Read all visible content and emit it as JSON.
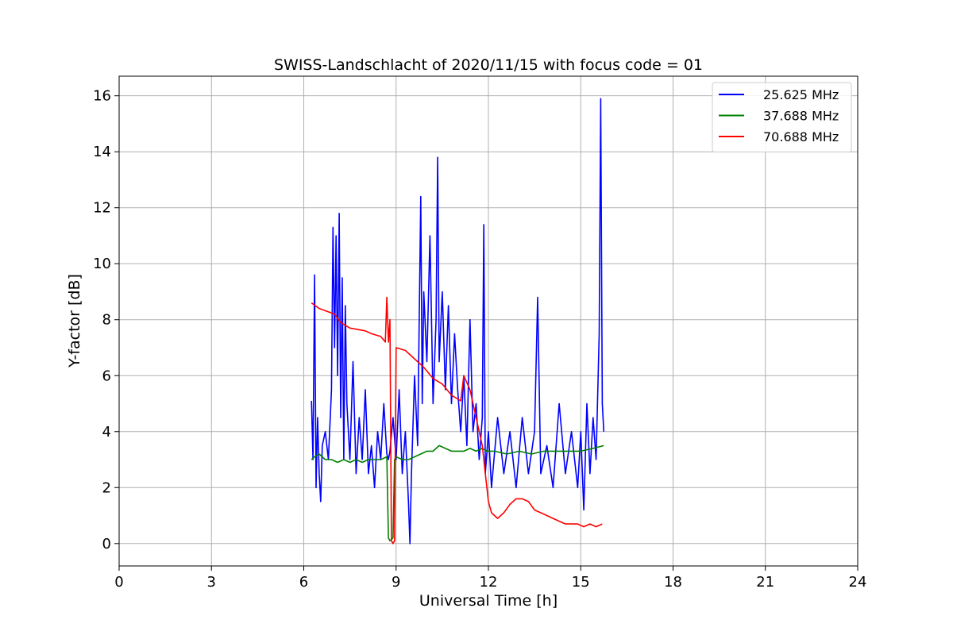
{
  "chart_data": {
    "type": "line",
    "title": "SWISS-Landschlacht of 2020/11/15 with focus code = 01",
    "xlabel": "Universal Time [h]",
    "ylabel": "Y-factor [dB]",
    "xlim": [
      0,
      24
    ],
    "ylim": [
      -0.8,
      16.7
    ],
    "xticks": [
      0,
      3,
      6,
      9,
      12,
      15,
      18,
      21,
      24
    ],
    "yticks": [
      0,
      2,
      4,
      6,
      8,
      10,
      12,
      14,
      16
    ],
    "grid": true,
    "legend_position": "top-right",
    "series": [
      {
        "name": "25.625 MHz",
        "color": "#0000ff",
        "x": [
          6.25,
          6.3,
          6.35,
          6.4,
          6.45,
          6.5,
          6.55,
          6.6,
          6.7,
          6.8,
          6.9,
          6.95,
          7.0,
          7.05,
          7.1,
          7.15,
          7.2,
          7.25,
          7.3,
          7.35,
          7.4,
          7.5,
          7.6,
          7.7,
          7.8,
          7.9,
          8.0,
          8.1,
          8.2,
          8.3,
          8.4,
          8.5,
          8.6,
          8.7,
          8.75,
          8.8,
          8.9,
          9.0,
          9.1,
          9.2,
          9.3,
          9.4,
          9.45,
          9.5,
          9.6,
          9.7,
          9.8,
          9.85,
          9.9,
          10.0,
          10.1,
          10.2,
          10.3,
          10.35,
          10.4,
          10.5,
          10.6,
          10.7,
          10.8,
          10.9,
          11.0,
          11.1,
          11.2,
          11.3,
          11.4,
          11.5,
          11.6,
          11.7,
          11.8,
          11.85,
          11.9,
          12.0,
          12.1,
          12.3,
          12.5,
          12.7,
          12.9,
          13.1,
          13.3,
          13.5,
          13.6,
          13.7,
          13.9,
          14.1,
          14.3,
          14.5,
          14.7,
          14.9,
          15.0,
          15.1,
          15.2,
          15.3,
          15.4,
          15.5,
          15.6,
          15.65,
          15.7,
          15.75
        ],
        "y": [
          5.1,
          3.0,
          9.6,
          2.0,
          4.5,
          2.5,
          1.5,
          3.5,
          4.0,
          3.0,
          5.5,
          11.3,
          7.0,
          11.0,
          6.0,
          11.8,
          4.5,
          9.5,
          3.0,
          8.5,
          5.0,
          3.0,
          6.5,
          2.5,
          4.5,
          3.0,
          5.5,
          2.5,
          3.5,
          2.0,
          4.0,
          3.0,
          5.0,
          3.2,
          3.0,
          3.3,
          4.5,
          3.0,
          5.5,
          2.5,
          4.0,
          1.5,
          0.0,
          2.5,
          6.0,
          3.5,
          12.4,
          5.0,
          9.0,
          6.5,
          11.0,
          5.0,
          8.0,
          13.8,
          6.5,
          9.0,
          5.5,
          8.5,
          5.0,
          7.5,
          5.5,
          4.0,
          6.0,
          3.5,
          8.0,
          4.0,
          5.0,
          3.0,
          4.5,
          11.4,
          2.5,
          4.0,
          2.0,
          4.5,
          2.5,
          4.0,
          2.0,
          4.5,
          2.5,
          4.0,
          8.8,
          2.5,
          3.5,
          2.0,
          5.0,
          2.5,
          4.0,
          2.0,
          4.0,
          1.2,
          5.0,
          2.5,
          4.5,
          3.0,
          7.5,
          15.9,
          5.0,
          4.0
        ]
      },
      {
        "name": "37.688 MHz",
        "color": "#008000",
        "x": [
          6.25,
          6.35,
          6.5,
          6.7,
          6.9,
          7.1,
          7.3,
          7.5,
          7.7,
          7.9,
          8.1,
          8.3,
          8.5,
          8.7,
          8.75,
          8.8,
          8.9,
          8.95,
          9.0,
          9.2,
          9.4,
          9.6,
          9.8,
          10.0,
          10.2,
          10.4,
          10.6,
          10.8,
          11.0,
          11.2,
          11.4,
          11.6,
          11.8,
          11.95,
          12.2,
          12.6,
          13.0,
          13.4,
          13.8,
          14.2,
          14.6,
          15.0,
          15.4,
          15.75
        ],
        "y": [
          3.0,
          3.1,
          3.2,
          3.0,
          3.0,
          2.9,
          3.0,
          2.9,
          3.0,
          2.9,
          3.0,
          3.0,
          3.0,
          3.1,
          0.2,
          0.1,
          0.2,
          3.0,
          3.1,
          3.0,
          3.0,
          3.1,
          3.2,
          3.3,
          3.3,
          3.5,
          3.4,
          3.3,
          3.3,
          3.3,
          3.4,
          3.3,
          3.4,
          3.3,
          3.3,
          3.2,
          3.3,
          3.2,
          3.3,
          3.3,
          3.3,
          3.3,
          3.4,
          3.5
        ]
      },
      {
        "name": "70.688 MHz",
        "color": "#ff0000",
        "x": [
          6.25,
          6.5,
          7.0,
          7.2,
          7.5,
          8.0,
          8.2,
          8.5,
          8.65,
          8.7,
          8.75,
          8.8,
          8.85,
          8.9,
          8.95,
          9.0,
          9.3,
          9.6,
          9.9,
          10.2,
          10.5,
          10.8,
          11.1,
          11.2,
          11.4,
          11.6,
          11.8,
          11.9,
          12.0,
          12.1,
          12.3,
          12.5,
          12.7,
          12.9,
          13.1,
          13.3,
          13.5,
          13.7,
          13.9,
          14.1,
          14.3,
          14.5,
          14.7,
          14.9,
          15.1,
          15.3,
          15.5,
          15.7
        ],
        "y": [
          8.6,
          8.4,
          8.2,
          7.9,
          7.7,
          7.6,
          7.5,
          7.4,
          7.2,
          8.8,
          7.2,
          8.0,
          0.1,
          0.0,
          0.1,
          7.0,
          6.9,
          6.6,
          6.3,
          5.9,
          5.7,
          5.3,
          5.1,
          6.0,
          5.5,
          4.5,
          3.5,
          2.5,
          1.5,
          1.1,
          0.9,
          1.1,
          1.4,
          1.6,
          1.6,
          1.5,
          1.2,
          1.1,
          1.0,
          0.9,
          0.8,
          0.7,
          0.7,
          0.7,
          0.6,
          0.7,
          0.6,
          0.7
        ]
      }
    ]
  }
}
